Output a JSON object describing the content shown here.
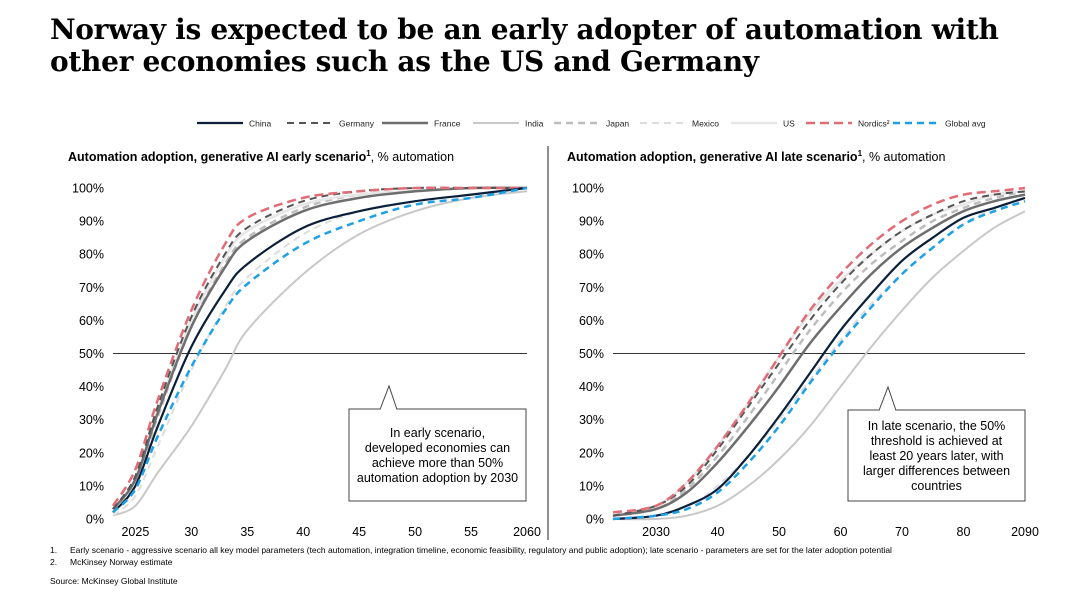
{
  "title": "Norway is expected to be an early adopter of automation with other economies such as the US and Germany",
  "legend": [
    {
      "name": "China",
      "color": "#0b1f3a",
      "dash": "",
      "width": 2.2
    },
    {
      "name": "Germany",
      "color": "#555555",
      "dash": "7,5",
      "width": 2
    },
    {
      "name": "France",
      "color": "#6e6e6e",
      "dash": "",
      "width": 2.5
    },
    {
      "name": "India",
      "color": "#c8c8c8",
      "dash": "",
      "width": 2
    },
    {
      "name": "Japan",
      "color": "#bdbdbd",
      "dash": "7,5",
      "width": 2.5
    },
    {
      "name": "Mexico",
      "color": "#dddddd",
      "dash": "7,5",
      "width": 2
    },
    {
      "name": "US",
      "color": "#e6e6e6",
      "dash": "",
      "width": 2.5
    },
    {
      "name": "Nordics²",
      "color": "#e06c75",
      "dash": "9,5",
      "width": 2.5
    },
    {
      "name": "Global avg",
      "color": "#1ea0e6",
      "dash": "7,5",
      "width": 2.5
    }
  ],
  "chart_data": [
    {
      "type": "line",
      "title_bold": "Automation adoption, generative AI early scenario",
      "title_sup": "1",
      "title_rest": ", % automation",
      "xlim": [
        2023,
        2060
      ],
      "ylim": [
        0,
        100
      ],
      "x_ticks": [
        2025,
        2030,
        2035,
        2040,
        2045,
        2050,
        2055,
        2060
      ],
      "x_tick_labels": [
        "2025",
        "30",
        "35",
        "40",
        "45",
        "50",
        "55",
        "2060"
      ],
      "y_ticks": [
        0,
        10,
        20,
        30,
        40,
        50,
        60,
        70,
        80,
        90,
        100
      ],
      "y_tick_labels": [
        "0%",
        "10%",
        "20%",
        "30%",
        "40%",
        "50%",
        "60%",
        "70%",
        "80%",
        "90%",
        "100%"
      ],
      "reference_line": 50,
      "annotation": "In early scenario, developed economies can achieve more than 50% automation adoption by 2030",
      "series": [
        {
          "name": "India",
          "points": [
            [
              2023,
              1
            ],
            [
              2025,
              4
            ],
            [
              2027,
              14
            ],
            [
              2030,
              28
            ],
            [
              2033,
              45
            ],
            [
              2035,
              57
            ],
            [
              2040,
              74
            ],
            [
              2045,
              86
            ],
            [
              2050,
              93
            ],
            [
              2055,
              97
            ],
            [
              2060,
              99
            ]
          ]
        },
        {
          "name": "Mexico",
          "points": [
            [
              2023,
              1
            ],
            [
              2025,
              7
            ],
            [
              2027,
              22
            ],
            [
              2030,
              45
            ],
            [
              2033,
              64
            ],
            [
              2035,
              73
            ],
            [
              2040,
              86
            ],
            [
              2045,
              93
            ],
            [
              2050,
              96
            ],
            [
              2055,
              98
            ],
            [
              2060,
              100
            ]
          ]
        },
        {
          "name": "Japan",
          "points": [
            [
              2023,
              2
            ],
            [
              2025,
              11
            ],
            [
              2027,
              31
            ],
            [
              2030,
              58
            ],
            [
              2033,
              77
            ],
            [
              2035,
              85
            ],
            [
              2040,
              94
            ],
            [
              2045,
              98
            ],
            [
              2050,
              99
            ],
            [
              2055,
              100
            ],
            [
              2060,
              100
            ]
          ]
        },
        {
          "name": "US",
          "points": [
            [
              2023,
              3
            ],
            [
              2025,
              12
            ],
            [
              2027,
              33
            ],
            [
              2030,
              60
            ],
            [
              2033,
              79
            ],
            [
              2035,
              87
            ],
            [
              2040,
              95
            ],
            [
              2045,
              98
            ],
            [
              2050,
              99
            ],
            [
              2055,
              100
            ],
            [
              2060,
              100
            ]
          ]
        },
        {
          "name": "France",
          "points": [
            [
              2023,
              3
            ],
            [
              2025,
              12
            ],
            [
              2027,
              32
            ],
            [
              2030,
              58
            ],
            [
              2033,
              76
            ],
            [
              2035,
              84
            ],
            [
              2040,
              93
            ],
            [
              2045,
              97
            ],
            [
              2050,
              99
            ],
            [
              2055,
              100
            ],
            [
              2060,
              100
            ]
          ]
        },
        {
          "name": "Germany",
          "points": [
            [
              2023,
              3
            ],
            [
              2025,
              13
            ],
            [
              2027,
              34
            ],
            [
              2030,
              61
            ],
            [
              2033,
              80
            ],
            [
              2035,
              88
            ],
            [
              2040,
              96
            ],
            [
              2045,
              99
            ],
            [
              2050,
              100
            ],
            [
              2055,
              100
            ],
            [
              2060,
              100
            ]
          ]
        },
        {
          "name": "Nordics²",
          "points": [
            [
              2023,
              4
            ],
            [
              2025,
              15
            ],
            [
              2027,
              36
            ],
            [
              2030,
              63
            ],
            [
              2033,
              83
            ],
            [
              2035,
              91
            ],
            [
              2040,
              97
            ],
            [
              2045,
              99
            ],
            [
              2050,
              100
            ],
            [
              2055,
              100
            ],
            [
              2060,
              100
            ]
          ]
        },
        {
          "name": "China",
          "points": [
            [
              2023,
              2
            ],
            [
              2025,
              10
            ],
            [
              2027,
              28
            ],
            [
              2030,
              52
            ],
            [
              2033,
              69
            ],
            [
              2035,
              77
            ],
            [
              2040,
              88
            ],
            [
              2045,
              93
            ],
            [
              2050,
              96
            ],
            [
              2055,
              98
            ],
            [
              2060,
              100
            ]
          ]
        },
        {
          "name": "Global avg",
          "points": [
            [
              2023,
              2
            ],
            [
              2025,
              9
            ],
            [
              2027,
              25
            ],
            [
              2030,
              46
            ],
            [
              2033,
              63
            ],
            [
              2035,
              71
            ],
            [
              2040,
              83
            ],
            [
              2045,
              90
            ],
            [
              2050,
              95
            ],
            [
              2055,
              97
            ],
            [
              2060,
              100
            ]
          ]
        }
      ]
    },
    {
      "type": "line",
      "title_bold": "Automation adoption, generative AI late scenario",
      "title_sup": "1",
      "title_rest": ", % automation",
      "xlim": [
        2023,
        2090
      ],
      "ylim": [
        0,
        100
      ],
      "x_ticks": [
        2030,
        2040,
        2050,
        2060,
        2070,
        2080,
        2090
      ],
      "x_tick_labels": [
        "2030",
        "40",
        "50",
        "60",
        "70",
        "80",
        "2090"
      ],
      "y_ticks": [
        0,
        10,
        20,
        30,
        40,
        50,
        60,
        70,
        80,
        90,
        100
      ],
      "y_tick_labels": [
        "0%",
        "10%",
        "20%",
        "30%",
        "40%",
        "50%",
        "60%",
        "70%",
        "80%",
        "90%",
        "100%"
      ],
      "reference_line": 50,
      "annotation": "In late scenario, the 50% threshold is achieved at least 20 years later, with larger differences between countries",
      "series": [
        {
          "name": "India",
          "points": [
            [
              2023,
              0
            ],
            [
              2030,
              0
            ],
            [
              2035,
              1
            ],
            [
              2040,
              4
            ],
            [
              2045,
              10
            ],
            [
              2050,
              18
            ],
            [
              2055,
              28
            ],
            [
              2060,
              40
            ],
            [
              2065,
              52
            ],
            [
              2070,
              63
            ],
            [
              2075,
              73
            ],
            [
              2080,
              81
            ],
            [
              2085,
              88
            ],
            [
              2090,
              93
            ]
          ]
        },
        {
          "name": "Mexico",
          "points": [
            [
              2023,
              0
            ],
            [
              2030,
              1
            ],
            [
              2035,
              3
            ],
            [
              2040,
              10
            ],
            [
              2045,
              19
            ],
            [
              2050,
              30
            ],
            [
              2055,
              42
            ],
            [
              2060,
              54
            ],
            [
              2065,
              65
            ],
            [
              2070,
              74
            ],
            [
              2075,
              82
            ],
            [
              2080,
              89
            ],
            [
              2085,
              94
            ],
            [
              2090,
              97
            ]
          ]
        },
        {
          "name": "Japan",
          "points": [
            [
              2023,
              1
            ],
            [
              2030,
              3
            ],
            [
              2035,
              9
            ],
            [
              2040,
              19
            ],
            [
              2045,
              31
            ],
            [
              2050,
              44
            ],
            [
              2055,
              57
            ],
            [
              2060,
              68
            ],
            [
              2065,
              77
            ],
            [
              2070,
              84
            ],
            [
              2075,
              90
            ],
            [
              2080,
              94
            ],
            [
              2085,
              97
            ],
            [
              2090,
              99
            ]
          ]
        },
        {
          "name": "US",
          "points": [
            [
              2023,
              1
            ],
            [
              2030,
              4
            ],
            [
              2035,
              11
            ],
            [
              2040,
              22
            ],
            [
              2045,
              35
            ],
            [
              2050,
              49
            ],
            [
              2055,
              62
            ],
            [
              2060,
              72
            ],
            [
              2065,
              80
            ],
            [
              2070,
              87
            ],
            [
              2075,
              92
            ],
            [
              2080,
              95
            ],
            [
              2085,
              98
            ],
            [
              2090,
              99
            ]
          ]
        },
        {
          "name": "France",
          "points": [
            [
              2023,
              1
            ],
            [
              2030,
              3
            ],
            [
              2035,
              8
            ],
            [
              2040,
              17
            ],
            [
              2045,
              28
            ],
            [
              2050,
              40
            ],
            [
              2055,
              53
            ],
            [
              2060,
              64
            ],
            [
              2065,
              74
            ],
            [
              2070,
              82
            ],
            [
              2075,
              88
            ],
            [
              2080,
              93
            ],
            [
              2085,
              96
            ],
            [
              2090,
              98
            ]
          ]
        },
        {
          "name": "Germany",
          "points": [
            [
              2023,
              1
            ],
            [
              2030,
              4
            ],
            [
              2035,
              10
            ],
            [
              2040,
              21
            ],
            [
              2045,
              34
            ],
            [
              2050,
              47
            ],
            [
              2055,
              60
            ],
            [
              2060,
              71
            ],
            [
              2065,
              80
            ],
            [
              2070,
              87
            ],
            [
              2075,
              92
            ],
            [
              2080,
              96
            ],
            [
              2085,
              98
            ],
            [
              2090,
              99
            ]
          ]
        },
        {
          "name": "Nordics²",
          "points": [
            [
              2023,
              2
            ],
            [
              2030,
              4
            ],
            [
              2035,
              11
            ],
            [
              2040,
              22
            ],
            [
              2045,
              35
            ],
            [
              2050,
              49
            ],
            [
              2055,
              63
            ],
            [
              2060,
              74
            ],
            [
              2065,
              83
            ],
            [
              2070,
              90
            ],
            [
              2075,
              95
            ],
            [
              2080,
              98
            ],
            [
              2085,
              99
            ],
            [
              2090,
              100
            ]
          ]
        },
        {
          "name": "China",
          "points": [
            [
              2023,
              0
            ],
            [
              2030,
              1
            ],
            [
              2035,
              4
            ],
            [
              2040,
              9
            ],
            [
              2045,
              19
            ],
            [
              2050,
              31
            ],
            [
              2055,
              44
            ],
            [
              2060,
              57
            ],
            [
              2065,
              68
            ],
            [
              2070,
              78
            ],
            [
              2075,
              85
            ],
            [
              2080,
              91
            ],
            [
              2085,
              94
            ],
            [
              2090,
              97
            ]
          ]
        },
        {
          "name": "Global avg",
          "points": [
            [
              2023,
              0
            ],
            [
              2030,
              1
            ],
            [
              2035,
              3
            ],
            [
              2040,
              8
            ],
            [
              2045,
              17
            ],
            [
              2050,
              28
            ],
            [
              2055,
              41
            ],
            [
              2060,
              53
            ],
            [
              2065,
              64
            ],
            [
              2070,
              74
            ],
            [
              2075,
              82
            ],
            [
              2080,
              89
            ],
            [
              2085,
              93
            ],
            [
              2090,
              96
            ]
          ]
        }
      ]
    }
  ],
  "footnotes": [
    {
      "num": "1.",
      "text": "Early scenario - aggressive scenario all key model parameters (tech automation, integration timeline, economic feasibility, regulatory and public adoption); late scenario - parameters are set for the later adoption potential"
    },
    {
      "num": "2.",
      "text": "McKinsey Norway estimate"
    }
  ],
  "source": "Source: McKinsey Global Institute"
}
